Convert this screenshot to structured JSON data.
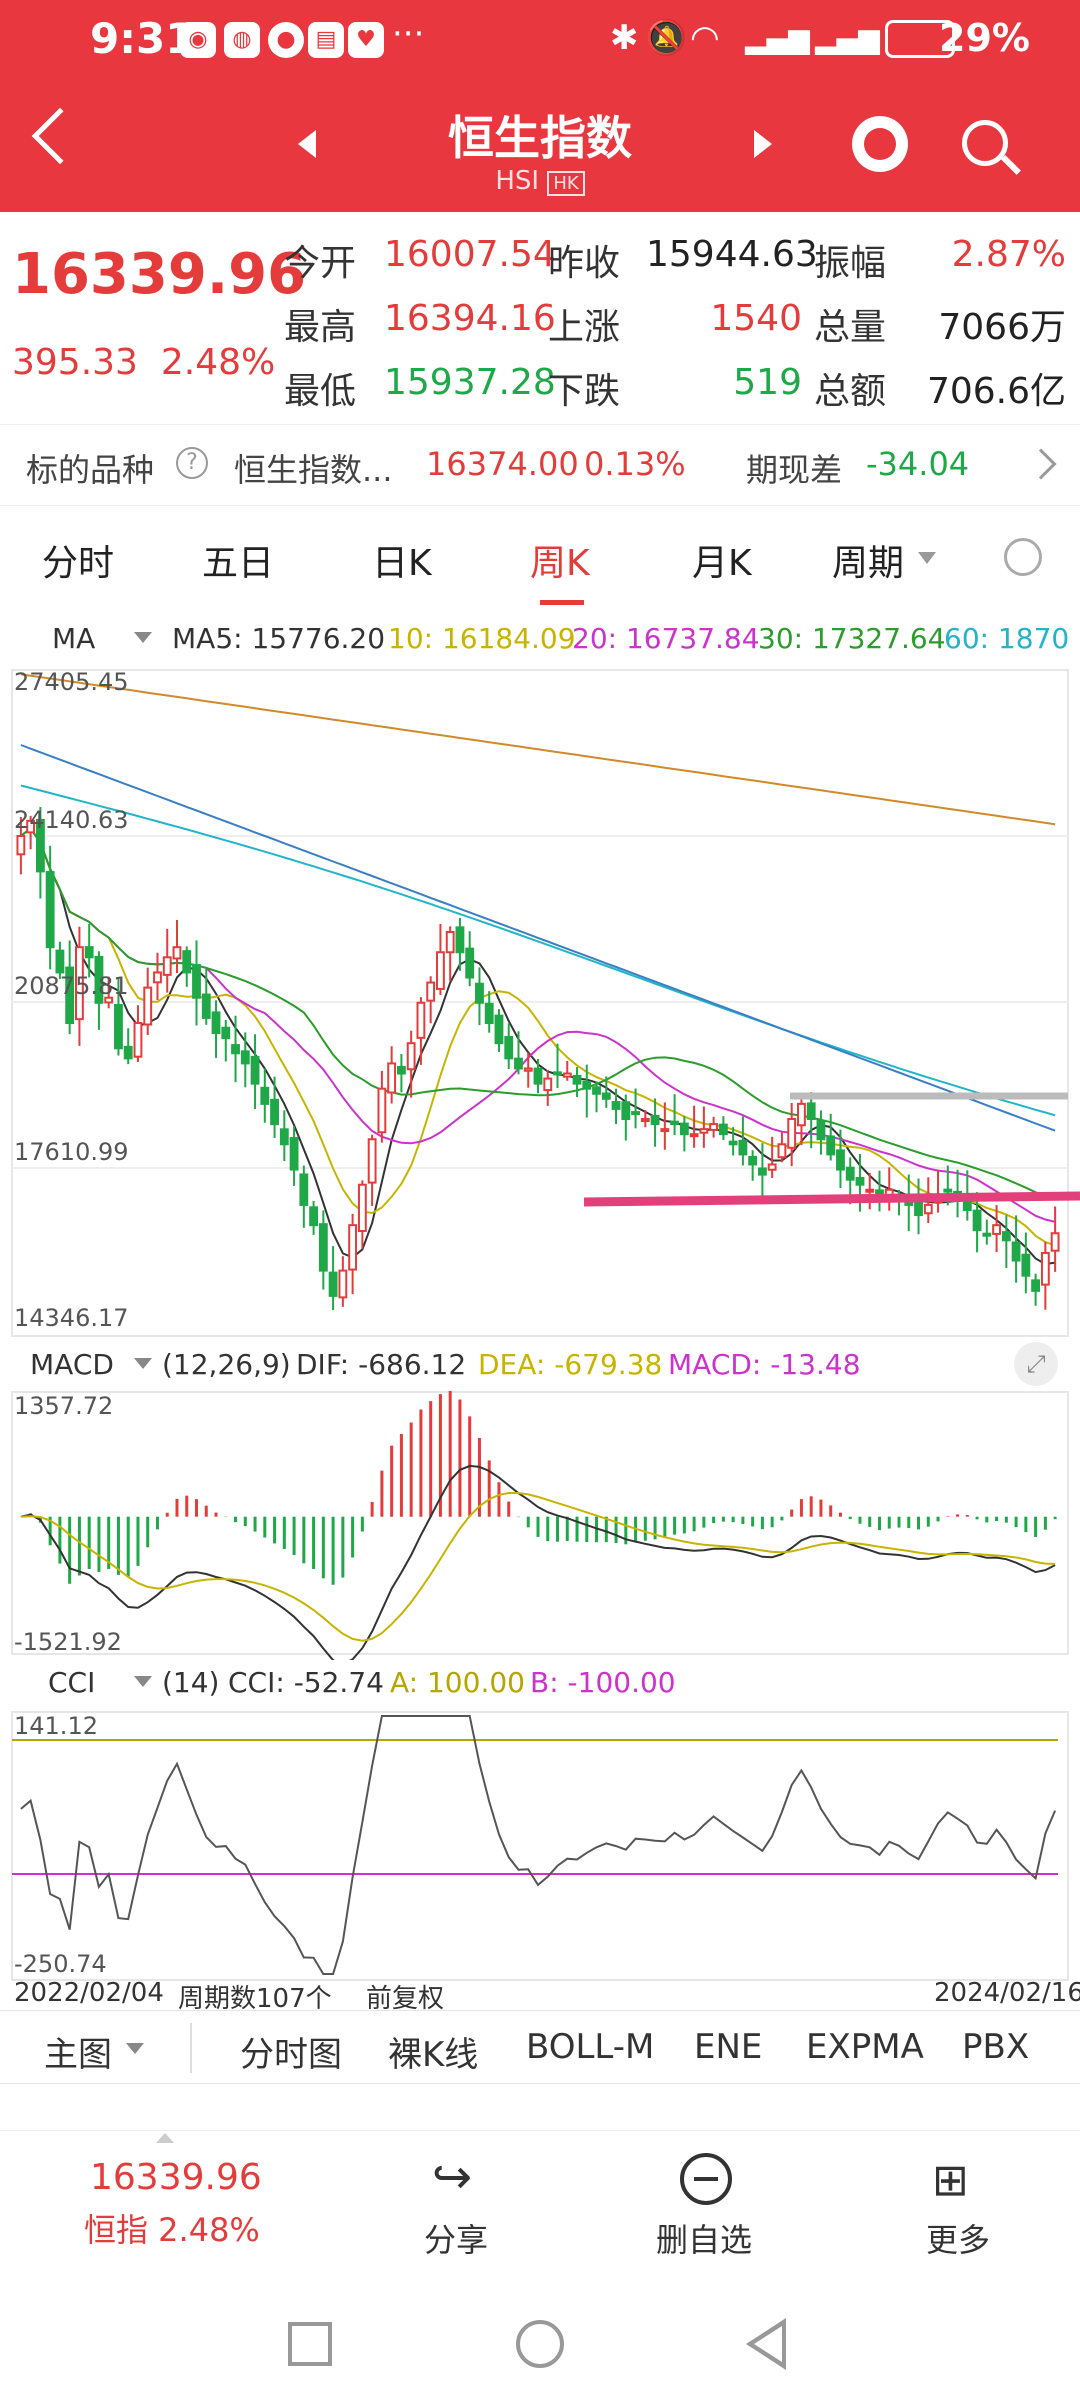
{
  "status_bar": {
    "time": "9:31",
    "battery": "29%"
  },
  "nav": {
    "title": "恒生指数",
    "subtitle": "HSI",
    "market_tag": "HK"
  },
  "quote": {
    "price": "16339.96",
    "change": "395.33",
    "change_pct": "2.48%",
    "open_label": "今开",
    "open": "16007.54",
    "prev_close_label": "昨收",
    "prev_close": "15944.63",
    "amplitude_label": "振幅",
    "amplitude": "2.87%",
    "high_label": "最高",
    "high": "16394.16",
    "up_label": "上涨",
    "up_count": "1540",
    "volume_label": "总量",
    "volume": "7066万",
    "low_label": "最低",
    "low": "15937.28",
    "down_label": "下跌",
    "down_count": "519",
    "turnover_label": "总额",
    "turnover": "706.6亿"
  },
  "futures": {
    "label": "标的品种",
    "name": "恒生指数...",
    "price": "16374.00",
    "pct": "0.13%",
    "basis_label": "期现差",
    "basis": "-34.04"
  },
  "tabs": [
    {
      "label": "分时",
      "active": false
    },
    {
      "label": "五日",
      "active": false
    },
    {
      "label": "日K",
      "active": false
    },
    {
      "label": "周K",
      "active": true
    },
    {
      "label": "月K",
      "active": false
    },
    {
      "label": "周期",
      "active": false
    }
  ],
  "ma_legend": {
    "name": "MA",
    "ma5": "MA5: 15776.20",
    "ma10": "10: 16184.09",
    "ma20": "20: 16737.84",
    "ma30": "30: 17327.64",
    "ma60": "60: 1870"
  },
  "macd_legend": {
    "name": "MACD",
    "params": "(12,26,9)",
    "dif": "DIF: -686.12",
    "dea": "DEA: -679.38",
    "macd": "MACD: -13.48"
  },
  "cci_legend": {
    "name": "CCI",
    "params": "(14)",
    "cci": "CCI: -52.74",
    "a": "A: 100.00",
    "b": "B: -100.00"
  },
  "axis_labels": {
    "price_top": "27405.45",
    "price_2": "24140.63",
    "price_3": "20875.81",
    "price_4": "17610.99",
    "price_bottom": "14346.17",
    "macd_top": "1357.72",
    "macd_bottom": "-1521.92",
    "cci_top": "141.12",
    "cci_bottom": "-250.74",
    "date_start": "2022/02/04",
    "period_count": "周期数107个",
    "adjust": "前复权",
    "date_end": "2024/02/16"
  },
  "bottom_tabs": [
    {
      "label": "主图"
    },
    {
      "label": "分时图"
    },
    {
      "label": "裸K线"
    },
    {
      "label": "BOLL-M"
    },
    {
      "label": "ENE"
    },
    {
      "label": "EXPMA"
    },
    {
      "label": "PBX"
    }
  ],
  "dock": {
    "price": "16339.96",
    "name_pct": "恒指 2.48%",
    "share": "分享",
    "remove": "删自选",
    "more": "更多"
  },
  "colors": {
    "header_red": "#e8373f",
    "up_red": "#e43b3b",
    "down_green": "#1ea848",
    "ma5": "#333333",
    "ma10": "#c8b400",
    "ma20": "#cc33cc",
    "ma30": "#2a9d2a",
    "ma60": "#22b5c9",
    "ma120": "#3a7fc4",
    "ma250": "#d08a2a"
  },
  "chart_data": {
    "type": "candlestick",
    "period": "weekly",
    "x_range": [
      "2022/02/04",
      "2024/02/16"
    ],
    "count": 107,
    "ylim": [
      14346.17,
      27405.45
    ],
    "closes": [
      24200,
      24500,
      23500,
      22000,
      21500,
      20500,
      22000,
      21800,
      20900,
      21000,
      20000,
      19800,
      20500,
      21200,
      21500,
      21800,
      22000,
      21500,
      21000,
      20600,
      20300,
      20200,
      19900,
      19700,
      19300,
      18900,
      18500,
      18100,
      17600,
      16900,
      16500,
      15600,
      15100,
      15600,
      16500,
      17300,
      18200,
      19200,
      19700,
      19500,
      20100,
      20900,
      21300,
      21900,
      22300,
      21900,
      21400,
      20900,
      20500,
      20100,
      19800,
      19600,
      19600,
      19300,
      19400,
      19500,
      19500,
      19300,
      19200,
      19100,
      19000,
      18800,
      18600,
      18700,
      18600,
      18500,
      18400,
      18500,
      18300,
      18300,
      18400,
      18500,
      18300,
      18100,
      17900,
      17700,
      17500,
      17700,
      18100,
      18600,
      18900,
      18600,
      18200,
      17900,
      17600,
      17400,
      17300,
      17200,
      17000,
      17200,
      17100,
      16900,
      16700,
      16900,
      17100,
      17200,
      17000,
      16800,
      16400,
      16300,
      16500,
      16200,
      15800,
      15500,
      15200,
      15950,
      16340
    ],
    "macd_ylim": [
      -1521.92,
      1357.72
    ],
    "cci_ylim": [
      -250.74,
      141.12
    ]
  }
}
